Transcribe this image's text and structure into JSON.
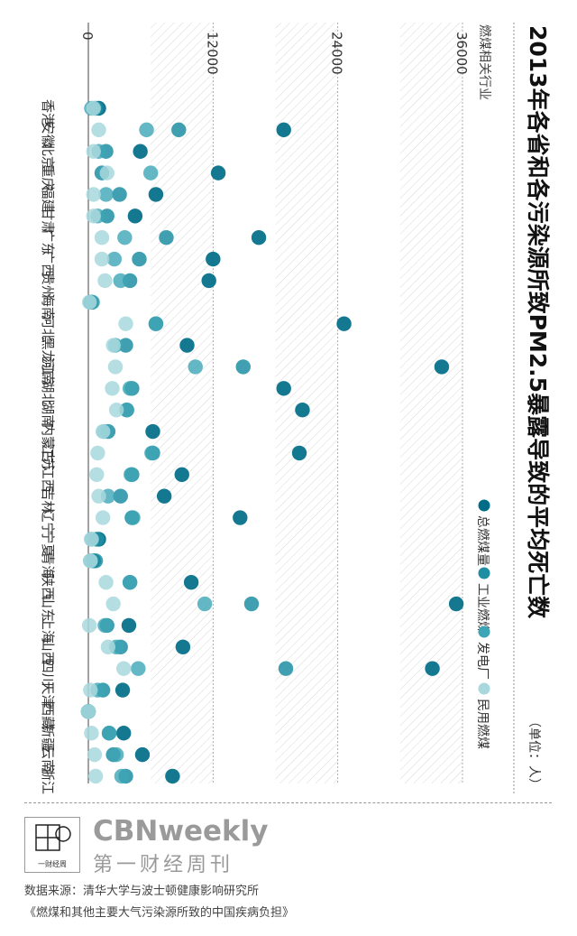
{
  "title": "2013年各省和各污染源所致PM2.5暴露导致的平均死亡数",
  "unit": "（单位：人）",
  "subtitle": "燃煤相关行业",
  "footer": {
    "brand": "CBNweekly",
    "brand_cn": "第一财经周刊",
    "logo_text": "一财经周",
    "source": "数据来源：清华大学与波士顿健康影响研究所",
    "source2": "《燃煤和其他主要大气污染源所致的中国疾病负担》"
  },
  "chart_data": {
    "type": "scatter",
    "title": "2013年各省和各污染源所致PM2.5暴露导致的平均死亡数",
    "unit": "（单位：人）",
    "axis_range": [
      0,
      36000
    ],
    "ticks": [
      "0",
      "12000",
      "24000",
      "36000"
    ],
    "tick_values": [
      0,
      12000,
      24000,
      36000
    ],
    "categories": [
      "香港",
      "安徽",
      "北京",
      "重庆",
      "福建",
      "甘肃",
      "广东",
      "广西",
      "贵州",
      "海南",
      "河北",
      "黑龙江",
      "河南",
      "湖北",
      "湖南",
      "内蒙古",
      "江苏",
      "江西",
      "吉林",
      "辽宁",
      "宁夏",
      "青海",
      "陕西",
      "山东",
      "上海",
      "山西",
      "四川",
      "天津",
      "西藏",
      "新疆",
      "云南",
      "浙江"
    ],
    "series": [
      {
        "name": "总燃煤量",
        "color": "#006c87",
        "values": [
          1000,
          18800,
          5000,
          12500,
          6500,
          4500,
          16400,
          12000,
          11600,
          300,
          24600,
          9500,
          34000,
          18800,
          20600,
          6200,
          20300,
          9000,
          7300,
          14600,
          1000,
          500,
          9900,
          35400,
          3900,
          9100,
          33100,
          3300,
          -100,
          3400,
          5200,
          8100
        ]
      },
      {
        "name": "工业燃煤",
        "color": "#1f8ea3",
        "values": [
          700,
          8700,
          1700,
          1300,
          3000,
          1800,
          7500,
          4900,
          4000,
          200,
          6500,
          3600,
          14900,
          4200,
          3700,
          1900,
          6200,
          4200,
          3100,
          4200,
          800,
          700,
          4000,
          15700,
          1800,
          3100,
          19000,
          1400,
          0,
          2000,
          2400,
          3600
        ]
      },
      {
        "name": "发电厂",
        "color": "#3da5b5",
        "values": [
          300,
          5600,
          1000,
          6000,
          1700,
          900,
          3500,
          2500,
          3100,
          400,
          6500,
          2600,
          10300,
          4000,
          3700,
          1500,
          6100,
          4100,
          1900,
          4300,
          300,
          200,
          4000,
          11200,
          1600,
          2700,
          4800,
          900,
          0,
          2000,
          2700,
          3200
        ]
      },
      {
        "name": "民用燃煤",
        "color": "#a8d8dd",
        "values": [
          500,
          1000,
          500,
          1800,
          500,
          500,
          1300,
          1300,
          1600,
          100,
          3600,
          2400,
          2600,
          2300,
          2700,
          1400,
          900,
          800,
          1000,
          1400,
          300,
          200,
          1700,
          2400,
          100,
          1900,
          3400,
          200,
          0,
          300,
          600,
          700
        ]
      }
    ]
  }
}
